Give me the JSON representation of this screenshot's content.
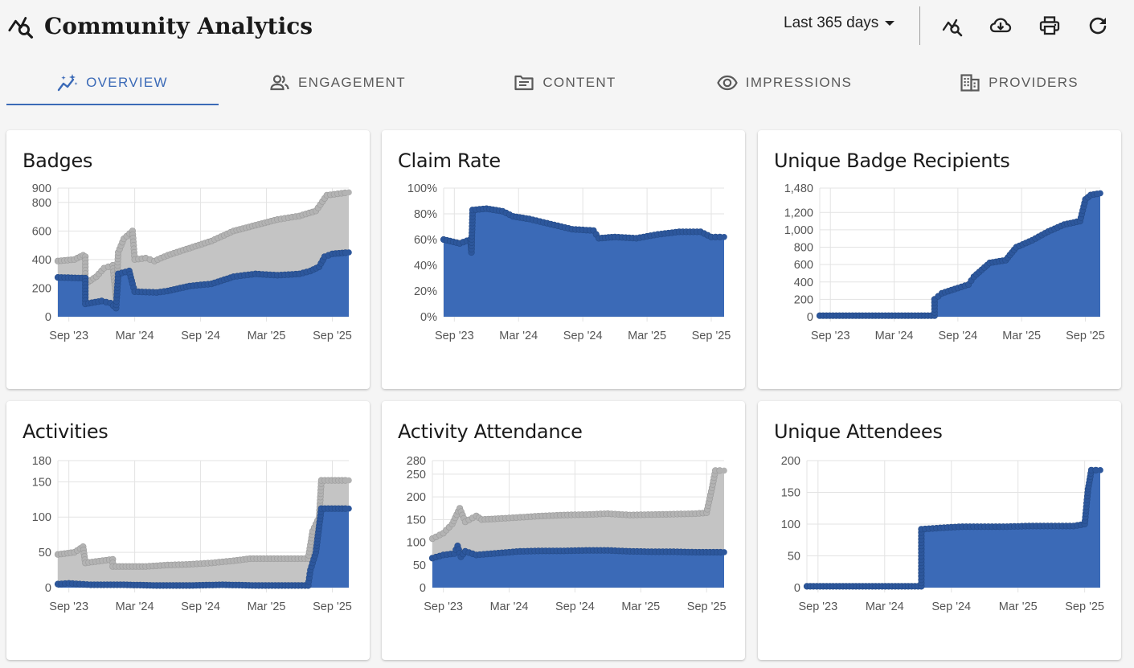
{
  "header": {
    "title": "Community Analytics",
    "range_label": "Last 365 days",
    "icons": [
      "analytics-search-icon",
      "cloud-download-icon",
      "print-icon",
      "refresh-icon"
    ]
  },
  "tabs": [
    {
      "label": "OVERVIEW",
      "icon": "sparkle-trend-icon",
      "active": true
    },
    {
      "label": "ENGAGEMENT",
      "icon": "people-icon",
      "active": false
    },
    {
      "label": "CONTENT",
      "icon": "article-icon",
      "active": false
    },
    {
      "label": "IMPRESSIONS",
      "icon": "eye-icon",
      "active": false
    },
    {
      "label": "PROVIDERS",
      "icon": "building-icon",
      "active": false
    }
  ],
  "colors": {
    "accent": "#3b6ab7",
    "blue": "#3b6ab7",
    "gray": "#c4c4c4",
    "blue_dot": "#2d579c",
    "gray_dot": "#b3b3b3"
  },
  "cards": [
    {
      "title": "Badges",
      "chart_data": {
        "type": "area",
        "x_labels": [
          "Sep '23",
          "Mar '24",
          "Sep '24",
          "Mar '25",
          "Sep '25"
        ],
        "x_range": [
          0,
          25.5
        ],
        "x_ticks": [
          1,
          7,
          13,
          19,
          25
        ],
        "y_ticks": [
          0,
          200,
          400,
          600,
          800,
          900
        ],
        "y_tick_labels": [
          "0",
          "200",
          "400",
          "600",
          "800",
          "900"
        ],
        "ylim": [
          0,
          900
        ],
        "series": [
          {
            "color": "gray",
            "points": [
              [
                0,
                390
              ],
              [
                1.5,
                400
              ],
              [
                2.3,
                430
              ],
              [
                2.5,
                420
              ],
              [
                2.5,
                230
              ],
              [
                3.5,
                280
              ],
              [
                4.2,
                340
              ],
              [
                5,
                360
              ],
              [
                5.3,
                130
              ],
              [
                5.5,
                450
              ],
              [
                6,
                545
              ],
              [
                6.8,
                600
              ],
              [
                7,
                400
              ],
              [
                8,
                410
              ],
              [
                8.8,
                390
              ],
              [
                10,
                430
              ],
              [
                12,
                480
              ],
              [
                14,
                530
              ],
              [
                16,
                600
              ],
              [
                18,
                640
              ],
              [
                20,
                680
              ],
              [
                22,
                705
              ],
              [
                23.5,
                740
              ],
              [
                24.5,
                850
              ],
              [
                26.5,
                870
              ]
            ]
          },
          {
            "color": "blue",
            "points": [
              [
                0,
                275
              ],
              [
                2.5,
                270
              ],
              [
                2.5,
                90
              ],
              [
                4,
                110
              ],
              [
                4.8,
                95
              ],
              [
                5.3,
                60
              ],
              [
                5.5,
                300
              ],
              [
                6.5,
                320
              ],
              [
                6.8,
                230
              ],
              [
                7,
                175
              ],
              [
                9,
                170
              ],
              [
                10,
                180
              ],
              [
                12,
                215
              ],
              [
                14,
                230
              ],
              [
                16,
                280
              ],
              [
                18,
                300
              ],
              [
                20,
                290
              ],
              [
                22,
                300
              ],
              [
                23,
                320
              ],
              [
                23.8,
                350
              ],
              [
                24.3,
                420
              ],
              [
                25,
                440
              ],
              [
                26.5,
                450
              ]
            ]
          }
        ]
      }
    },
    {
      "title": "Claim Rate",
      "chart_data": {
        "type": "area",
        "x_labels": [
          "Sep '23",
          "Mar '24",
          "Sep '24",
          "Mar '25",
          "Sep '25"
        ],
        "x_range": [
          0,
          26.2
        ],
        "x_ticks": [
          1,
          7,
          13,
          19,
          25
        ],
        "y_ticks": [
          0,
          20,
          40,
          60,
          80,
          100
        ],
        "y_tick_labels": [
          "0%",
          "20%",
          "40%",
          "60%",
          "80%",
          "100%"
        ],
        "ylim": [
          0,
          100
        ],
        "series": [
          {
            "color": "blue",
            "points": [
              [
                0,
                60
              ],
              [
                1.5,
                57
              ],
              [
                2.5,
                60
              ],
              [
                2.6,
                50
              ],
              [
                2.7,
                83
              ],
              [
                4,
                84
              ],
              [
                5.5,
                82
              ],
              [
                6.5,
                78
              ],
              [
                8,
                76
              ],
              [
                10,
                72
              ],
              [
                12,
                68
              ],
              [
                14,
                67
              ],
              [
                14.5,
                61
              ],
              [
                16,
                62
              ],
              [
                18,
                61
              ],
              [
                20,
                64
              ],
              [
                22,
                66
              ],
              [
                24,
                66
              ],
              [
                25,
                62
              ],
              [
                26.2,
                62
              ]
            ]
          }
        ]
      }
    },
    {
      "title": "Unique Badge Recipients",
      "chart_data": {
        "type": "area",
        "x_labels": [
          "Sep '23",
          "Mar '24",
          "Sep '24",
          "Mar '25",
          "Sep '25"
        ],
        "x_range": [
          0,
          25.5
        ],
        "x_ticks": [
          1,
          7,
          13,
          19,
          25
        ],
        "y_ticks": [
          0,
          200,
          400,
          600,
          800,
          1000,
          1200,
          1480
        ],
        "y_tick_labels": [
          "0",
          "200",
          "400",
          "600",
          "800",
          "1,000",
          "1,200",
          "1,480"
        ],
        "ylim": [
          0,
          1480
        ],
        "series": [
          {
            "color": "blue",
            "points": [
              [
                0,
                12
              ],
              [
                10.8,
                12
              ],
              [
                10.8,
                200
              ],
              [
                11.5,
                270
              ],
              [
                13,
                330
              ],
              [
                14,
                370
              ],
              [
                14.5,
                460
              ],
              [
                16,
                620
              ],
              [
                17.5,
                650
              ],
              [
                18.5,
                800
              ],
              [
                20,
                880
              ],
              [
                21.5,
                980
              ],
              [
                23,
                1060
              ],
              [
                24.5,
                1100
              ],
              [
                25,
                1350
              ],
              [
                25.5,
                1400
              ],
              [
                26.4,
                1420
              ]
            ]
          }
        ]
      }
    },
    {
      "title": "Activities",
      "chart_data": {
        "type": "area",
        "x_labels": [
          "Sep '23",
          "Mar '24",
          "Sep '24",
          "Mar '25",
          "Sep '25"
        ],
        "x_range": [
          0,
          25.5
        ],
        "x_ticks": [
          1,
          7,
          13,
          19,
          25
        ],
        "y_ticks": [
          0,
          50,
          100,
          150,
          180
        ],
        "y_tick_labels": [
          "0",
          "50",
          "100",
          "150",
          "180"
        ],
        "ylim": [
          0,
          180
        ],
        "series": [
          {
            "color": "gray",
            "points": [
              [
                0,
                47
              ],
              [
                1.5,
                50
              ],
              [
                2.3,
                58
              ],
              [
                2.5,
                35
              ],
              [
                5,
                40
              ],
              [
                5,
                30
              ],
              [
                8,
                30
              ],
              [
                10,
                32
              ],
              [
                12,
                33
              ],
              [
                14,
                35
              ],
              [
                16,
                38
              ],
              [
                17.5,
                41
              ],
              [
                20,
                41
              ],
              [
                22.8,
                41
              ],
              [
                23.2,
                80
              ],
              [
                23.8,
                100
              ],
              [
                24,
                152
              ],
              [
                26.5,
                152
              ]
            ]
          },
          {
            "color": "blue",
            "points": [
              [
                0,
                5
              ],
              [
                1,
                6
              ],
              [
                3,
                4
              ],
              [
                6,
                4
              ],
              [
                9,
                3
              ],
              [
                12,
                3
              ],
              [
                15,
                4
              ],
              [
                18,
                3
              ],
              [
                21,
                3
              ],
              [
                22.8,
                3
              ],
              [
                23,
                25
              ],
              [
                23.5,
                50
              ],
              [
                24,
                112
              ],
              [
                26.5,
                112
              ]
            ]
          }
        ]
      }
    },
    {
      "title": "Activity Attendance",
      "chart_data": {
        "type": "area",
        "x_labels": [
          "Sep '23",
          "Mar '24",
          "Sep '24",
          "Mar '25",
          "Sep '25"
        ],
        "x_range": [
          0,
          26.6
        ],
        "x_ticks": [
          1,
          7,
          13,
          19,
          25
        ],
        "y_ticks": [
          0,
          50,
          100,
          150,
          200,
          250,
          280
        ],
        "y_tick_labels": [
          "0",
          "50",
          "100",
          "150",
          "200",
          "250",
          "280"
        ],
        "ylim": [
          0,
          280
        ],
        "series": [
          {
            "color": "gray",
            "points": [
              [
                0,
                108
              ],
              [
                1,
                120
              ],
              [
                1.8,
                140
              ],
              [
                2.5,
                175
              ],
              [
                3,
                145
              ],
              [
                4,
                158
              ],
              [
                4.5,
                150
              ],
              [
                6,
                152
              ],
              [
                8,
                155
              ],
              [
                10,
                158
              ],
              [
                12,
                160
              ],
              [
                14,
                161
              ],
              [
                16,
                163
              ],
              [
                18,
                160
              ],
              [
                20,
                161
              ],
              [
                22,
                162
              ],
              [
                24,
                163
              ],
              [
                25,
                165
              ],
              [
                25.5,
                220
              ],
              [
                25.8,
                258
              ],
              [
                26.6,
                258
              ]
            ]
          },
          {
            "color": "blue",
            "points": [
              [
                0,
                65
              ],
              [
                1,
                72
              ],
              [
                2,
                75
              ],
              [
                2.3,
                92
              ],
              [
                2.6,
                68
              ],
              [
                3,
                80
              ],
              [
                4,
                72
              ],
              [
                6,
                76
              ],
              [
                8,
                80
              ],
              [
                10,
                81
              ],
              [
                12,
                81
              ],
              [
                14,
                82
              ],
              [
                16,
                82
              ],
              [
                18,
                80
              ],
              [
                20,
                79
              ],
              [
                22,
                79
              ],
              [
                24,
                78
              ],
              [
                26.6,
                78
              ]
            ]
          }
        ]
      }
    },
    {
      "title": "Unique Attendees",
      "chart_data": {
        "type": "area",
        "x_labels": [
          "Sep '23",
          "Mar '24",
          "Sep '24",
          "Mar '25",
          "Sep '25"
        ],
        "x_range": [
          0,
          26.4
        ],
        "x_ticks": [
          1,
          7,
          13,
          19,
          25
        ],
        "y_ticks": [
          0,
          50,
          100,
          150,
          200
        ],
        "y_tick_labels": [
          "0",
          "50",
          "100",
          "150",
          "200"
        ],
        "ylim": [
          0,
          200
        ],
        "series": [
          {
            "color": "blue",
            "points": [
              [
                0,
                2
              ],
              [
                10.3,
                2
              ],
              [
                10.3,
                92
              ],
              [
                12,
                94
              ],
              [
                14,
                96
              ],
              [
                16,
                96
              ],
              [
                18,
                96
              ],
              [
                20,
                97
              ],
              [
                22,
                97
              ],
              [
                24,
                97
              ],
              [
                25,
                100
              ],
              [
                25.3,
                155
              ],
              [
                25.6,
                185
              ],
              [
                26.4,
                185
              ]
            ]
          }
        ]
      }
    }
  ]
}
